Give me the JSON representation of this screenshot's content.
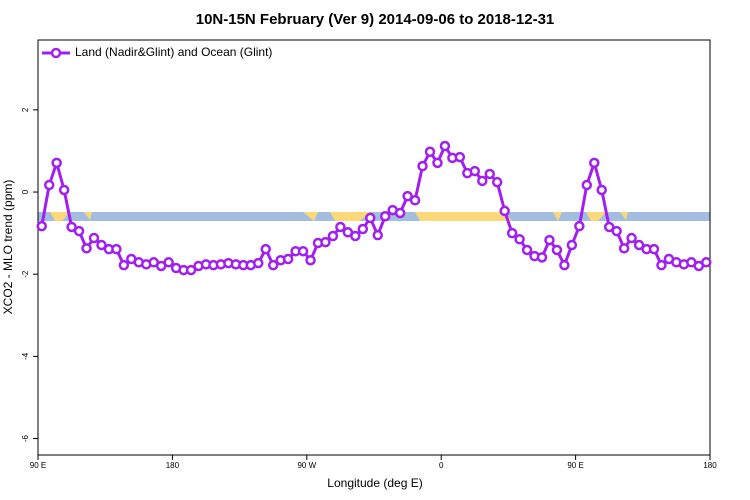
{
  "chart_data": {
    "type": "line",
    "title": "10N-15N February (Ver 9)   2014-09-06 to 2018-12-31",
    "x_label": "Longitude (deg E)",
    "y_label": "XCO2 - MLO trend (ppm)",
    "x": [
      92.5,
      97.5,
      102.5,
      107.5,
      112.5,
      117.5,
      122.5,
      127.5,
      132.5,
      137.5,
      142.5,
      147.5,
      152.5,
      157.5,
      162.5,
      167.5,
      172.5,
      177.5,
      182.5,
      187.5,
      192.5,
      197.5,
      202.5,
      207.5,
      212.5,
      217.5,
      222.5,
      227.5,
      232.5,
      237.5,
      242.5,
      247.5,
      252.5,
      257.5,
      262.5,
      267.5,
      272.5,
      277.5,
      282.5,
      287.5,
      292.5,
      297.5,
      302.5,
      307.5,
      312.5,
      317.5,
      322.5,
      327.5,
      332.5,
      337.5,
      342.5,
      347.5,
      352.5,
      357.5,
      362.5,
      367.5,
      372.5,
      377.5,
      382.5,
      387.5,
      392.5,
      397.5,
      402.5,
      407.5,
      412.5,
      417.5,
      422.5,
      427.5,
      432.5,
      437.5,
      442.5,
      447.5,
      452.5,
      457.5,
      462.5,
      467.5,
      472.5,
      477.5,
      482.5,
      487.5,
      492.5,
      497.5,
      502.5,
      507.5,
      512.5,
      517.5,
      522.5,
      527.5,
      532.5,
      537.5
    ],
    "series": [
      {
        "name": "Land (Nadir&Glint) and Ocean (Glint)",
        "color": "#a020f0",
        "values": [
          -0.83,
          0.17,
          0.71,
          0.05,
          -0.85,
          -0.95,
          -1.37,
          -1.12,
          -1.29,
          -1.39,
          -1.39,
          -1.78,
          -1.63,
          -1.71,
          -1.76,
          -1.71,
          -1.8,
          -1.71,
          -1.85,
          -1.9,
          -1.9,
          -1.8,
          -1.76,
          -1.78,
          -1.76,
          -1.73,
          -1.76,
          -1.78,
          -1.78,
          -1.73,
          -1.39,
          -1.78,
          -1.66,
          -1.63,
          -1.44,
          -1.44,
          -1.66,
          -1.24,
          -1.22,
          -1.07,
          -0.85,
          -0.98,
          -1.07,
          -0.9,
          -0.63,
          -1.05,
          -0.59,
          -0.44,
          -0.51,
          -0.1,
          -0.2,
          0.63,
          0.98,
          0.71,
          1.12,
          0.83,
          0.85,
          0.46,
          0.51,
          0.27,
          0.44,
          0.24,
          -0.46,
          -1.0,
          -1.15,
          -1.41,
          -1.56,
          -1.59,
          -1.17,
          -1.41,
          -1.78,
          -1.29,
          -0.83,
          0.17,
          0.71,
          0.05,
          -0.85,
          -0.95,
          -1.37,
          -1.12,
          -1.29,
          -1.39,
          -1.39,
          -1.78,
          -1.63,
          -1.71,
          -1.76,
          -1.71,
          -1.8,
          -1.71
        ]
      }
    ],
    "xlim": [
      90,
      540
    ],
    "xticks": [
      {
        "value": 90,
        "label": "90 E"
      },
      180,
      {
        "value": 270,
        "label": "90 W"
      },
      {
        "value": 360,
        "label": "0"
      },
      {
        "value": 450,
        "label": "90 E"
      },
      {
        "value": 540,
        "label": "180"
      }
    ],
    "ylim": [
      -6.4,
      3.7
    ],
    "yticks": [
      2,
      0,
      -2,
      -4,
      -6
    ],
    "legend": "top-left"
  }
}
